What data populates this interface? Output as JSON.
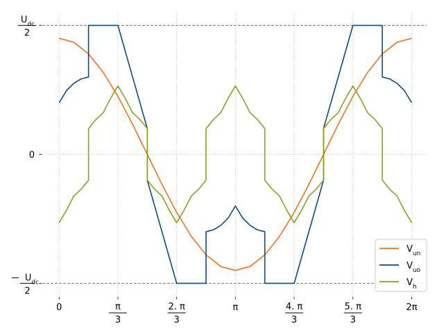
{
  "chart_data": {
    "type": "line",
    "title": "",
    "xlabel": "",
    "ylabel": "",
    "xlim": [
      -0.3,
      6.55
    ],
    "ylim": [
      -1.1,
      1.1
    ],
    "grid": true,
    "legend_position": "lower-right",
    "x_ticks": [
      {
        "value": 0,
        "label": "0",
        "kind": "plain"
      },
      {
        "value": 1.0472,
        "num": "π",
        "den": "3",
        "kind": "frac"
      },
      {
        "value": 2.0944,
        "num": "2. π",
        "den": "3",
        "kind": "frac"
      },
      {
        "value": 3.1416,
        "label": "π",
        "kind": "plain"
      },
      {
        "value": 4.1888,
        "num": "4. π",
        "den": "3",
        "kind": "frac"
      },
      {
        "value": 5.236,
        "num": "5. π",
        "den": "3",
        "kind": "frac"
      },
      {
        "value": 6.2832,
        "label": "2π",
        "kind": "plain"
      }
    ],
    "y_ticks": [
      {
        "value": 1,
        "num_base": "U",
        "num_sub": "dc",
        "den": "2",
        "neg": false,
        "kind": "frac"
      },
      {
        "value": 0,
        "label": "0",
        "kind": "plain"
      },
      {
        "value": -1,
        "num_base": "U",
        "num_sub": "dc",
        "den": "2",
        "neg": true,
        "kind": "frac"
      }
    ],
    "reference_lines": [
      1,
      -1
    ],
    "reference_color": "#777777",
    "series": [
      {
        "name_base": "V",
        "name_sub": "un",
        "color": "#f4711c",
        "x": [
          0,
          0.2618,
          0.5236,
          0.7854,
          1.0472,
          1.309,
          1.5708,
          1.8326,
          2.0944,
          2.3562,
          2.618,
          2.8798,
          3.1416,
          3.4034,
          3.6652,
          3.927,
          4.1888,
          4.4506,
          4.7124,
          4.9742,
          5.236,
          5.4978,
          5.7596,
          6.0214,
          6.2832
        ],
        "y": [
          0.9,
          0.869,
          0.779,
          0.636,
          0.45,
          0.233,
          0.0,
          -0.233,
          -0.45,
          -0.636,
          -0.779,
          -0.869,
          -0.9,
          -0.869,
          -0.779,
          -0.636,
          -0.45,
          -0.233,
          0.0,
          0.233,
          0.45,
          0.636,
          0.779,
          0.869,
          0.9
        ]
      },
      {
        "name_base": "V",
        "name_sub": "uo",
        "color": "#0a4a86",
        "x": [
          0,
          0.1309,
          0.2618,
          0.3927,
          0.5236,
          0.5236,
          1.0472,
          1.5708,
          1.5708,
          2.0944,
          2.618,
          2.618,
          2.7489,
          2.8798,
          3.0107,
          3.1416,
          3.2725,
          3.4034,
          3.5343,
          3.6652,
          3.6652,
          4.1888,
          4.7124,
          4.7124,
          5.236,
          5.7596,
          5.7596,
          5.8905,
          6.0214,
          6.1523,
          6.2832
        ],
        "y": [
          0.4,
          0.495,
          0.551,
          0.585,
          0.6,
          1.0,
          1.0,
          0.2,
          -0.2,
          -1.0,
          -1.0,
          -0.6,
          -0.585,
          -0.551,
          -0.495,
          -0.4,
          -0.495,
          -0.551,
          -0.585,
          -0.6,
          -1.0,
          -1.0,
          -0.2,
          0.2,
          1.0,
          1.0,
          0.6,
          0.585,
          0.551,
          0.495,
          0.4
        ]
      },
      {
        "name_base": "V",
        "name_sub": "h",
        "color": "#86a51e",
        "x": [
          0,
          0.1309,
          0.2618,
          0.3927,
          0.5236,
          0.5236,
          0.6545,
          0.7854,
          0.9163,
          1.0472,
          1.1781,
          1.309,
          1.4399,
          1.5708,
          1.5708,
          1.7017,
          1.8326,
          1.9635,
          2.0944,
          2.2253,
          2.3562,
          2.4871,
          2.618,
          2.618,
          2.7489,
          2.8798,
          3.0107,
          3.1416,
          3.2725,
          3.4034,
          3.5343,
          3.6652,
          3.6652,
          3.7961,
          3.927,
          4.0579,
          4.1888,
          4.3197,
          4.4506,
          4.5815,
          4.7124,
          4.7124,
          4.8433,
          4.9742,
          5.1051,
          5.236,
          5.3669,
          5.4978,
          5.6287,
          5.7596,
          5.7596,
          5.8905,
          6.0214,
          6.1523,
          6.2832
        ],
        "y": [
          -0.53,
          -0.434,
          -0.323,
          -0.27,
          -0.2,
          0.2,
          0.27,
          0.323,
          0.434,
          0.53,
          0.434,
          0.323,
          0.27,
          0.2,
          -0.2,
          -0.27,
          -0.323,
          -0.434,
          -0.53,
          -0.434,
          -0.323,
          -0.27,
          -0.2,
          0.2,
          0.27,
          0.323,
          0.434,
          0.53,
          0.434,
          0.323,
          0.27,
          0.2,
          -0.2,
          -0.27,
          -0.323,
          -0.434,
          -0.53,
          -0.434,
          -0.323,
          -0.27,
          -0.2,
          0.2,
          0.27,
          0.323,
          0.434,
          0.53,
          0.434,
          0.323,
          0.27,
          0.2,
          -0.2,
          -0.27,
          -0.323,
          -0.434,
          -0.53
        ]
      }
    ]
  }
}
